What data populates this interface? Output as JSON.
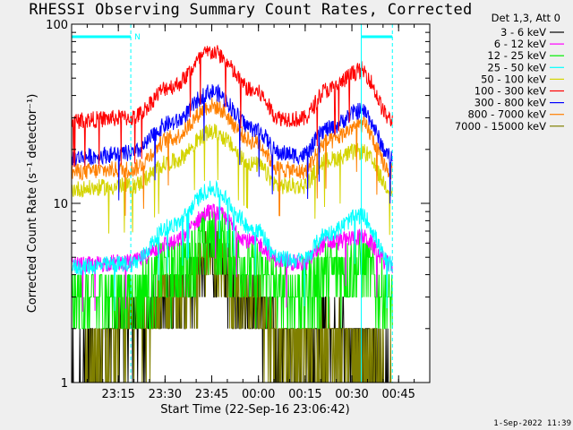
{
  "title": "RHESSI Observing Summary Count Rates, Corrected",
  "timestamp": "1-Sep-2022 11:39",
  "chart_data": {
    "type": "line",
    "title": "RHESSI Observing Summary Count Rates, Corrected",
    "xlabel": "Start Time (22-Sep-16 23:06:42)",
    "ylabel": "Corrected Count Rate (s⁻¹ detector⁻¹)",
    "yscale": "log",
    "ylim": [
      1,
      100
    ],
    "xlim_minutes": [
      -12,
      103
    ],
    "x_tick_labels": [
      "23:15",
      "23:30",
      "23:45",
      "00:00",
      "00:15",
      "00:30",
      "00:45"
    ],
    "x_tick_minutes": [
      3,
      18,
      33,
      48,
      63,
      78,
      93
    ],
    "y_tick_labels": [
      "1",
      "10",
      "100"
    ],
    "legend_title": "Det 1,3, Att 0",
    "data_end_minute": 91,
    "night_intervals_minutes": [
      [
        -12,
        7
      ],
      [
        81,
        91
      ]
    ],
    "night_marker_label": "N",
    "series": [
      {
        "name": "3 - 6 keV",
        "color": "#000000",
        "times_min": [
          -12,
          7,
          20,
          33,
          47,
          55,
          62,
          70,
          81,
          91
        ],
        "values": [
          1.0,
          2.0,
          2.5,
          4.5,
          2.5,
          1.6,
          1.5,
          1.8,
          1.4,
          1.0
        ]
      },
      {
        "name": "6 - 12 keV",
        "color": "#ff00ff",
        "times_min": [
          -12,
          7,
          20,
          33,
          47,
          55,
          62,
          70,
          81,
          91
        ],
        "values": [
          4.5,
          4.7,
          6.0,
          9.0,
          6.0,
          4.8,
          4.6,
          6.0,
          6.5,
          4.5
        ]
      },
      {
        "name": "12 - 25 keV",
        "color": "#00ee00",
        "times_min": [
          -12,
          7,
          20,
          33,
          47,
          55,
          62,
          70,
          81,
          91
        ],
        "values": [
          2.6,
          2.8,
          4.0,
          6.0,
          4.0,
          3.0,
          2.9,
          3.8,
          4.2,
          2.7
        ]
      },
      {
        "name": "25 - 50 keV",
        "color": "#00ffff",
        "times_min": [
          -12,
          7,
          20,
          33,
          47,
          55,
          62,
          70,
          81,
          91
        ],
        "values": [
          4.4,
          4.6,
          7.5,
          12.0,
          7.2,
          4.9,
          4.8,
          6.8,
          8.5,
          4.5
        ]
      },
      {
        "name": "50 - 100 keV",
        "color": "#d4d400",
        "times_min": [
          -12,
          7,
          20,
          33,
          47,
          55,
          62,
          70,
          81,
          91
        ],
        "values": [
          12.0,
          12.5,
          17.0,
          25.0,
          16.5,
          12.5,
          12.5,
          17.5,
          19.5,
          12.0
        ]
      },
      {
        "name": "100 - 300 keV",
        "color": "#ff0000",
        "times_min": [
          -12,
          7,
          20,
          33,
          47,
          55,
          62,
          70,
          81,
          91
        ],
        "values": [
          29.0,
          30.0,
          45.0,
          70.0,
          42.0,
          30.0,
          29.5,
          43.0,
          55.0,
          29.0
        ]
      },
      {
        "name": "300 - 800 keV",
        "color": "#0000ff",
        "times_min": [
          -12,
          7,
          20,
          33,
          47,
          55,
          62,
          70,
          81,
          91
        ],
        "values": [
          18.0,
          19.0,
          28.0,
          42.0,
          26.0,
          19.0,
          18.5,
          26.0,
          33.0,
          18.0
        ]
      },
      {
        "name": "800 - 7000 keV",
        "color": "#ff8000",
        "times_min": [
          -12,
          7,
          20,
          33,
          47,
          55,
          62,
          70,
          81,
          91
        ],
        "values": [
          15.0,
          15.5,
          23.0,
          35.0,
          22.0,
          15.5,
          15.0,
          22.0,
          27.5,
          15.0
        ]
      },
      {
        "name": "7000 - 15000 keV",
        "color": "#808000",
        "times_min": [
          -12,
          7,
          20,
          33,
          47,
          55,
          62,
          70,
          81,
          91
        ],
        "values": [
          1.0,
          2.0,
          2.6,
          4.6,
          2.4,
          1.6,
          1.5,
          1.8,
          1.4,
          1.0
        ]
      }
    ]
  }
}
